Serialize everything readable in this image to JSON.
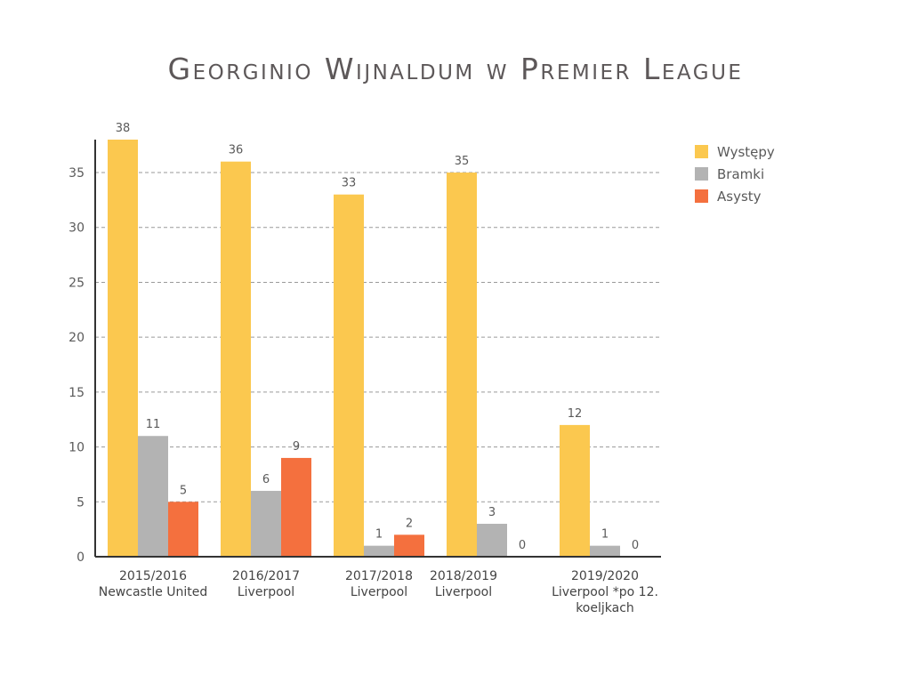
{
  "chart_data": {
    "type": "bar",
    "title": "Georginio Wijnaldum w Premier League",
    "categories": [
      [
        "2015/2016",
        "Newcastle United"
      ],
      [
        "2016/2017",
        "Liverpool"
      ],
      [
        "2017/2018",
        "Liverpool"
      ],
      [
        "2018/2019",
        "Liverpool"
      ],
      [
        "2019/2020",
        "Liverpool *po 12.",
        "koeljkach"
      ]
    ],
    "series": [
      {
        "name": "Występy",
        "color": "#fbc84f",
        "values": [
          38,
          36,
          33,
          35,
          12
        ]
      },
      {
        "name": "Bramki",
        "color": "#b3b3b3",
        "values": [
          11,
          6,
          1,
          3,
          1
        ]
      },
      {
        "name": "Asysty",
        "color": "#f4703e",
        "values": [
          5,
          9,
          2,
          0,
          0
        ]
      }
    ],
    "y_ticks": [
      0,
      5,
      10,
      15,
      20,
      25,
      30,
      35
    ],
    "ylim": [
      0,
      38
    ],
    "grid": true,
    "legend_position": "top-right"
  }
}
